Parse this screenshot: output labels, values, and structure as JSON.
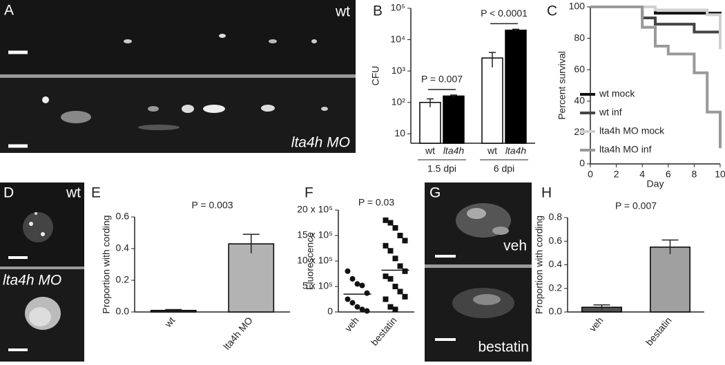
{
  "panels": [
    {
      "label": "A",
      "texts": [
        "wt",
        "lta4h MO"
      ]
    },
    {
      "label": "D",
      "texts": [
        "wt",
        "lta4h MO"
      ]
    },
    {
      "label": "G",
      "texts": [
        "veh",
        "bestatin"
      ]
    }
  ],
  "chart_data": [
    {
      "panel": "B",
      "type": "bar",
      "ylabel": "CFU",
      "log": true,
      "ylim": [
        5,
        100000
      ],
      "yticks": [
        10,
        {
          "value": 100,
          "label": "10²"
        },
        {
          "value": 1000,
          "label": "10³"
        },
        {
          "value": 10000,
          "label": "10⁴"
        },
        {
          "value": 100000,
          "label": "10⁵"
        }
      ],
      "categories": [
        "1.5 dpi",
        "6 dpi"
      ],
      "series": [
        {
          "name": "wt",
          "color": "#ffffff",
          "values": [
            100,
            2600
          ],
          "errors": [
            30,
            1300
          ]
        },
        {
          "name": "lta4h",
          "color": "#000000",
          "values": [
            160,
            20000
          ],
          "errors": [
            12,
            1500
          ]
        }
      ],
      "annotations": [
        "P = 0.007",
        "P < 0.0001"
      ]
    },
    {
      "panel": "C",
      "type": "line",
      "xlabel": "Day",
      "ylabel": "Percent survival",
      "xlim": [
        0,
        10
      ],
      "xticks": [
        0,
        2,
        4,
        6,
        8,
        10
      ],
      "ylim": [
        0,
        100
      ],
      "yticks": [
        0,
        20,
        40,
        60,
        80,
        100
      ],
      "legend": "left",
      "series": [
        {
          "name": "wt mock",
          "color": "#111111",
          "x": [
            0,
            5,
            5,
            10,
            10
          ],
          "values": [
            100,
            100,
            96,
            96,
            93
          ]
        },
        {
          "name": "wt inf",
          "color": "#444444",
          "x": [
            0,
            4,
            4,
            5,
            5,
            8,
            8,
            10
          ],
          "values": [
            100,
            100,
            93,
            93,
            89,
            89,
            84,
            84
          ]
        },
        {
          "name": "lta4h MO mock",
          "color": "#d0d0d0",
          "x": [
            0,
            5,
            5,
            9,
            9,
            10,
            10
          ],
          "values": [
            100,
            100,
            98,
            98,
            95,
            95,
            73
          ]
        },
        {
          "name": "lta4h MO inf",
          "color": "#999999",
          "x": [
            0,
            4,
            4,
            5,
            5,
            6,
            6,
            8,
            8,
            9,
            9,
            10,
            10
          ],
          "values": [
            100,
            100,
            87,
            87,
            75,
            75,
            70,
            70,
            58,
            58,
            33,
            33,
            10
          ]
        }
      ]
    },
    {
      "panel": "E",
      "type": "bar",
      "ylabel": "Proportion with cording",
      "ylim": [
        0,
        0.6
      ],
      "yticks": [
        {
          "value": 0,
          "label": "0.0"
        },
        0.2,
        0.4,
        0.6
      ],
      "categories": [
        "wt",
        "lta4h MO"
      ],
      "values": [
        0.01,
        0.43
      ],
      "errors": [
        0.005,
        0.06
      ],
      "colors": [
        "#505050",
        "#b3b3b3"
      ],
      "annotations": [
        "P = 0.003"
      ]
    },
    {
      "panel": "F",
      "type": "scatter",
      "ylabel": "Fluorescence",
      "ylim": [
        0,
        2000000
      ],
      "yticks": [
        0,
        {
          "value": 500000,
          "label": "5 x 10⁵"
        },
        {
          "value": 1000000,
          "label": "10 x 10⁵"
        },
        {
          "value": 1500000,
          "label": "15 x 10⁵"
        },
        {
          "value": 2000000,
          "label": "20 x 10⁵"
        }
      ],
      "categories": [
        "veh",
        "bestatin"
      ],
      "values": [
        [
          800000,
          650000,
          550000,
          520000,
          370000,
          250000,
          180000,
          100000,
          50000,
          20000
        ],
        [
          1800000,
          1750000,
          1650000,
          1500000,
          1400000,
          1300000,
          1200000,
          1050000,
          900000,
          800000,
          700000,
          650000,
          500000,
          400000,
          300000,
          250000,
          100000,
          50000
        ]
      ],
      "means": [
        350000,
        820000
      ],
      "markers": [
        "circle",
        "square"
      ],
      "annotations": [
        "P = 0.03"
      ]
    },
    {
      "panel": "H",
      "type": "bar",
      "ylabel": "Proportion with cording",
      "ylim": [
        0,
        0.8
      ],
      "yticks": [
        {
          "value": 0,
          "label": "0.0"
        },
        0.2,
        0.4,
        0.6,
        0.8
      ],
      "categories": [
        "veh",
        "bestatin"
      ],
      "values": [
        0.04,
        0.55
      ],
      "errors": [
        0.02,
        0.06
      ],
      "colors": [
        "#505050",
        "#a0a0a0"
      ],
      "annotations": [
        "P = 0.007"
      ]
    }
  ]
}
